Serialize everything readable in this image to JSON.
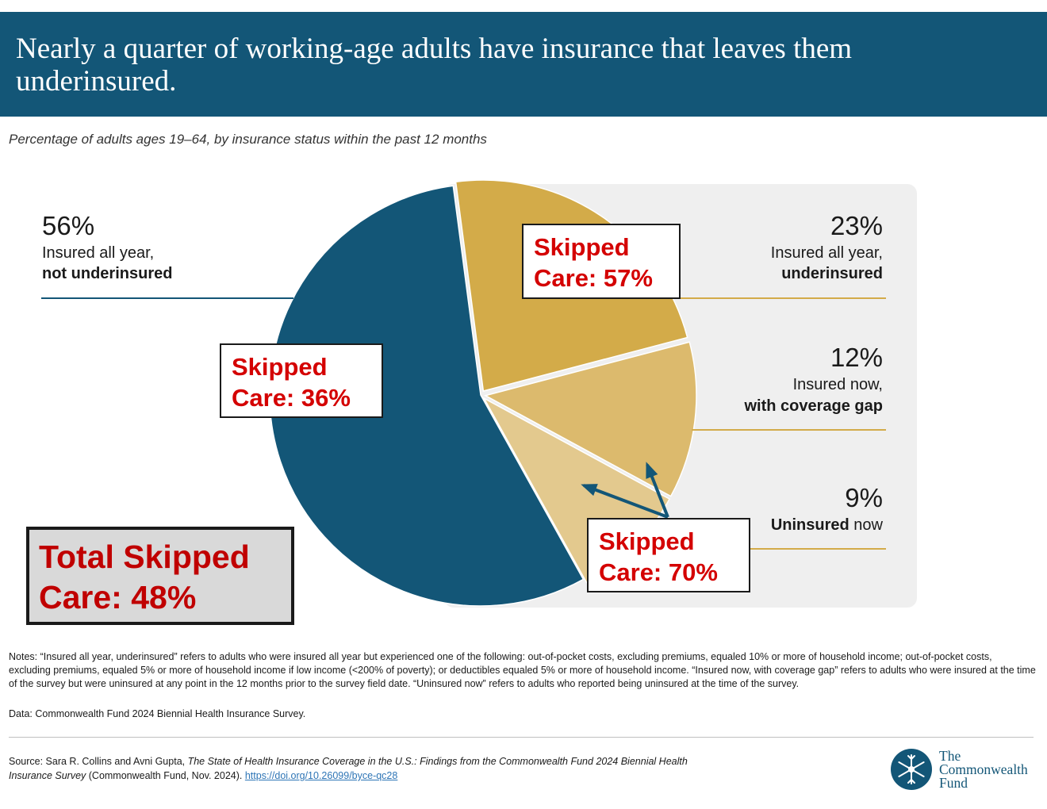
{
  "title": "Nearly a quarter of working-age adults have insurance that leaves them underinsured.",
  "subtitle": "Percentage of adults ages 19–64, by insurance status within the past 12 months",
  "colors": {
    "header": "#135677",
    "insured_not_underinsured": "#135677",
    "insured_underinsured": "#d3ab49",
    "coverage_gap": "#dcba6d",
    "uninsured": "#e3c98e",
    "callout_text": "#d40000",
    "panel": "#efefef"
  },
  "chart_data": {
    "type": "pie",
    "slices": [
      {
        "label": "Insured all year, not underinsured",
        "value": 56,
        "color": "#135677"
      },
      {
        "label": "Insured all year, underinsured",
        "value": 23,
        "color": "#d3ab49"
      },
      {
        "label": "Insured now, with coverage gap",
        "value": 12,
        "color": "#dcba6d"
      },
      {
        "label": "Uninsured now",
        "value": 9,
        "color": "#e3c98e"
      }
    ],
    "skipped_care": {
      "not_underinsured": 36,
      "underinsured": 57,
      "gap_and_uninsured": 70,
      "total": 48
    }
  },
  "labels": {
    "not_underinsured": {
      "pct": "56%",
      "line1": "Insured all year,",
      "line2": "not underinsured"
    },
    "underinsured": {
      "pct": "23%",
      "line1": "Insured all year,",
      "line2": "underinsured"
    },
    "gap": {
      "pct": "12%",
      "line1": "Insured now,",
      "line2": "with coverage gap"
    },
    "uninsured": {
      "pct": "9%",
      "line2_bold": "Uninsured",
      "line2_rest": " now"
    }
  },
  "callouts": {
    "underinsured": {
      "line1": "Skipped",
      "line2": "Care: 57%"
    },
    "not_underinsured": {
      "line1": "Skipped",
      "line2": "Care: 36%"
    },
    "gap_uninsured": {
      "line1": "Skipped",
      "line2": "Care: 70%"
    },
    "total": {
      "line1": "Total Skipped",
      "line2": "Care: 48%"
    }
  },
  "notes": "Notes: “Insured all year, underinsured” refers to adults who were insured all year but experienced one of the following: out-of-pocket costs, excluding premiums, equaled 10% or more of household income; out-of-pocket costs, excluding premiums, equaled 5% or more of household income if low income (<200% of poverty); or deductibles equaled 5% or more of household income. “Insured now, with coverage gap” refers to adults who were insured at the time of the survey but were uninsured at any point in the 12 months prior to the survey field date. “Uninsured now” refers to adults who reported being uninsured at the time of the survey.",
  "data_line": "Data: Commonwealth Fund 2024 Biennial Health Insurance Survey.",
  "source": {
    "prefix": "Source: Sara R. Collins and Avni Gupta, ",
    "italic": "The State of Health Insurance Coverage in the U.S.: Findings from the Commonwealth Fund 2024 Biennial Health Insurance Survey",
    "suffix": " (Commonwealth Fund, Nov. 2024). ",
    "link": "https://doi.org/10.26099/byce-qc28"
  },
  "logo": {
    "line1": "The",
    "line2": "Commonwealth",
    "line3": "Fund",
    "icon": "snowflake-emblem-icon"
  }
}
